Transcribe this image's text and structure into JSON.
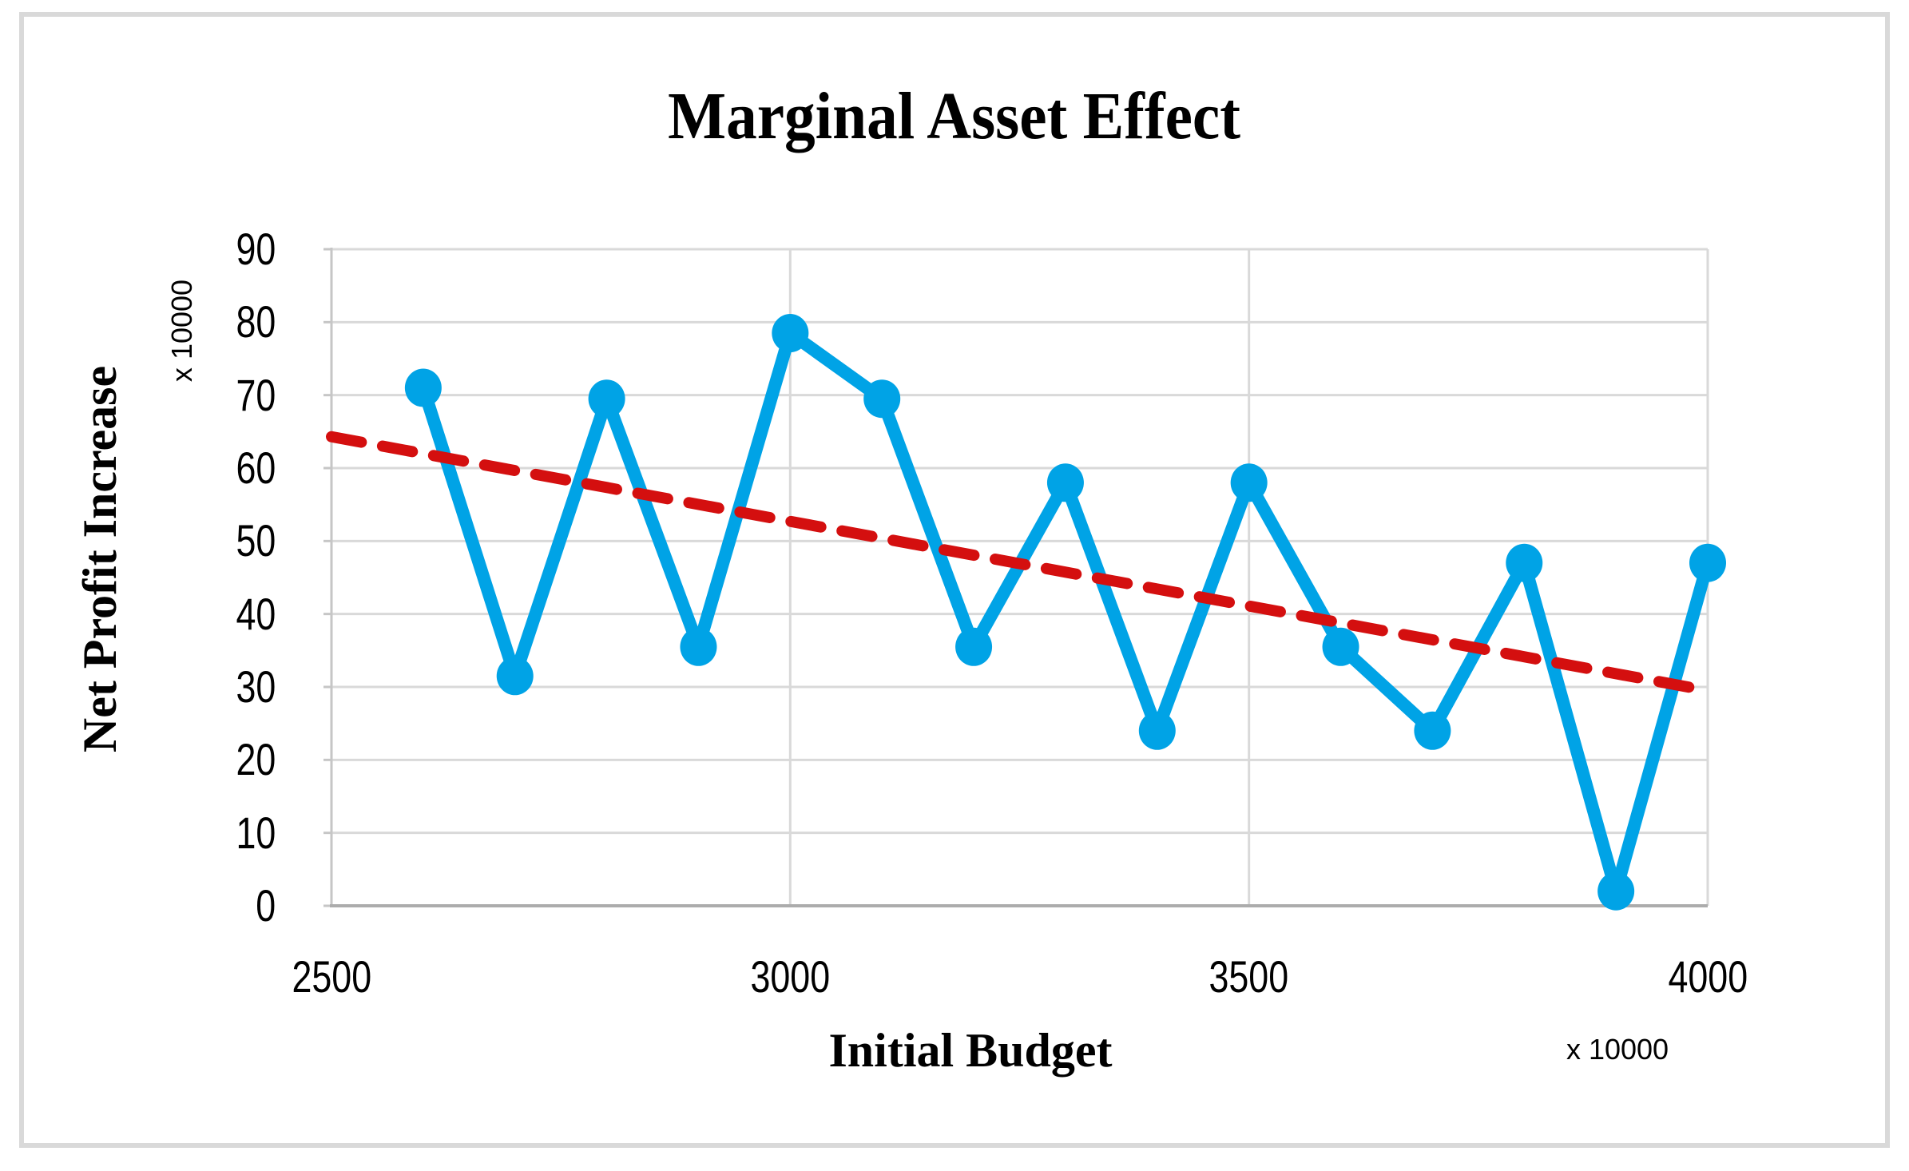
{
  "figure": {
    "title": "Marginal Asset Effect"
  },
  "axes": {
    "x": {
      "title": "Initial Budget",
      "multiplier_label": "x 10000",
      "ticks": [
        2500,
        3000,
        3500,
        4000
      ],
      "gridline_values": [
        3000,
        3500,
        4000
      ],
      "min": 2500,
      "max": 4000
    },
    "y": {
      "title": "Net Profit Increase",
      "multiplier_label": "x 10000",
      "ticks": [
        0,
        10,
        20,
        30,
        40,
        50,
        60,
        70,
        80,
        90
      ],
      "min": 0,
      "max": 90
    }
  },
  "colors": {
    "series_blue": "#00A3E6",
    "trend_red": "#D40F0F",
    "gridline": "#D9D9D9",
    "axis_line_left": "#C6C6C6",
    "axis_line_bottom": "#ACACAC",
    "figure_border": "#D9D9D9",
    "text": "#000000",
    "background": "#FFFFFF"
  },
  "chart_data": {
    "type": "line",
    "title": "Marginal Asset Effect",
    "xlabel": "Initial Budget",
    "ylabel": "Net Profit Increase",
    "x_multiplier": "x 10000",
    "y_multiplier": "x 10000",
    "xlim": [
      2500,
      4000
    ],
    "ylim": [
      0,
      90
    ],
    "grid": true,
    "legend": false,
    "x": [
      2600,
      2700,
      2800,
      2900,
      3000,
      3100,
      3200,
      3300,
      3400,
      3500,
      3600,
      3700,
      3800,
      3900,
      4000
    ],
    "series": [
      {
        "name": "Net Profit Increase",
        "style": "line-with-markers",
        "color": "#00A3E6",
        "values": [
          71,
          31.5,
          69.5,
          35.5,
          78.5,
          69.5,
          35.5,
          58,
          24,
          58,
          35.5,
          24,
          47,
          2,
          47
        ]
      },
      {
        "name": "Linear trendline",
        "style": "dashed-line",
        "color": "#D40F0F",
        "x": [
          2500,
          3987
        ],
        "values": [
          64.3,
          29.8
        ]
      }
    ]
  }
}
